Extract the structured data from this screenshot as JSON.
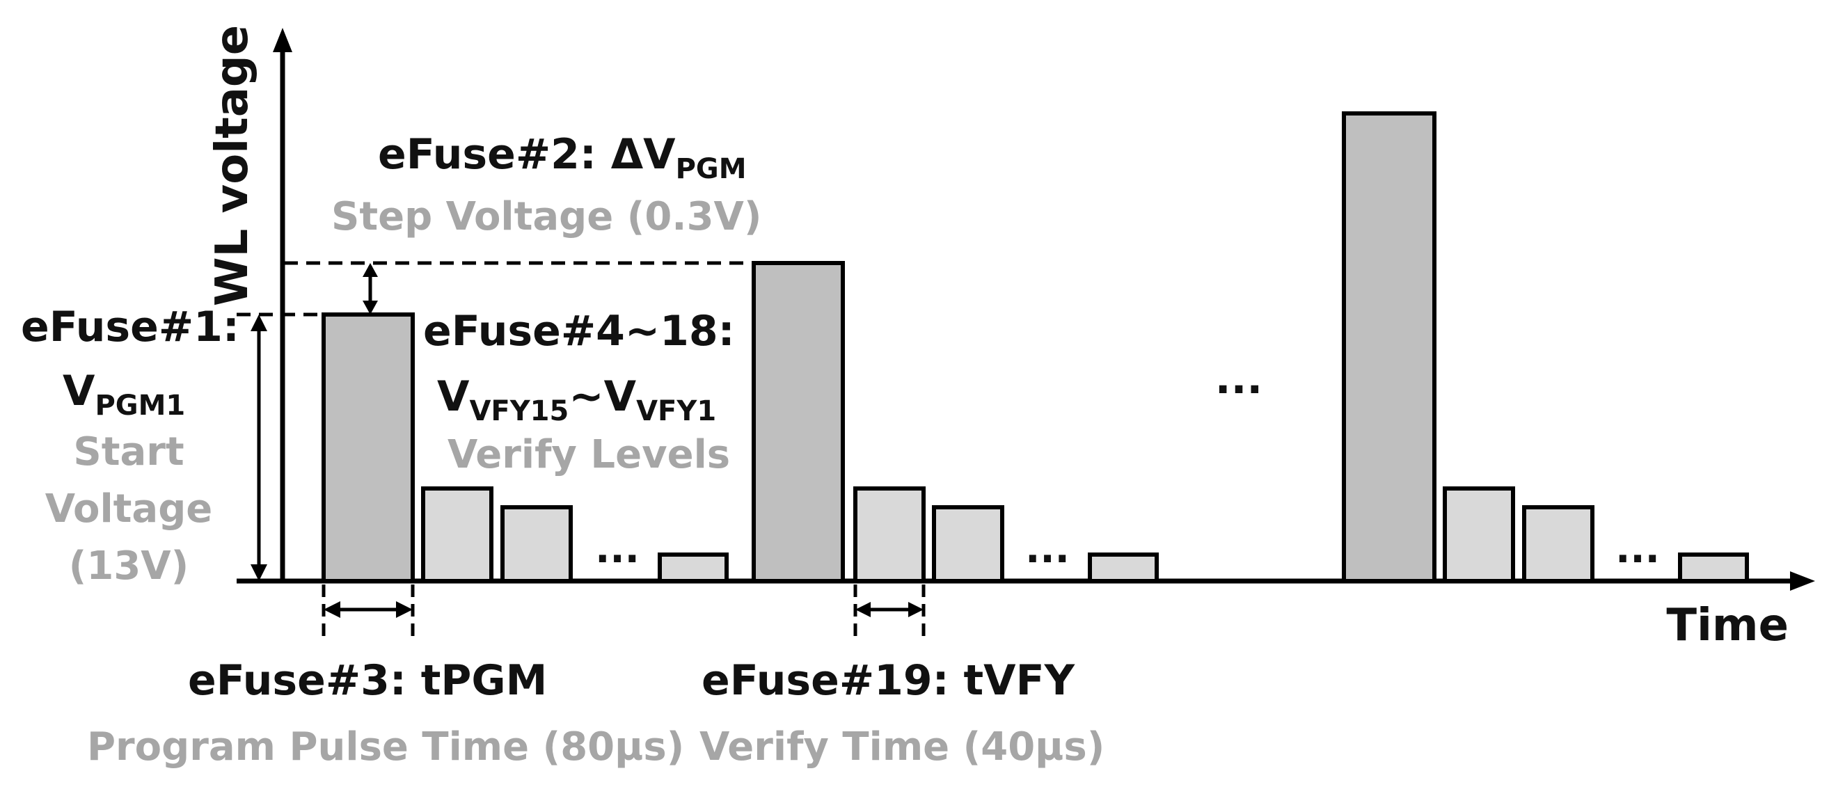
{
  "axes": {
    "y_label": "WL voltage",
    "x_label": "Time"
  },
  "ellipsis": "...",
  "annotations": {
    "efuse1": {
      "title": "eFuse#1:",
      "symbol": "V",
      "symbol_sub": "PGM1",
      "desc_lines": [
        "Start",
        "Voltage",
        "(13V)"
      ]
    },
    "efuse2": {
      "title": "eFuse#2: ΔV",
      "title_sub": "PGM",
      "desc": "Step Voltage (0.3V)"
    },
    "efuse4_18": {
      "title": "eFuse#4~18:",
      "v1": "V",
      "v1_sub": "VFY15",
      "tilde": "~V",
      "v2_sub": "VFY1",
      "desc": "Verify Levels"
    },
    "efuse3": {
      "title": "eFuse#3: tPGM",
      "desc": "Program Pulse Time (80µs)"
    },
    "efuse19": {
      "title": "eFuse#19: tVFY",
      "desc": "Verify Time (40µs)"
    }
  },
  "colors": {
    "program_pulse": "#bfbfbf",
    "verify_pulse": "#d9d9d9",
    "outline": "#000000",
    "description_text": "#a6a6a6",
    "title_text": "#111111"
  },
  "pulse_groups": [
    {
      "name": "pulse-group-1",
      "program_level": 1,
      "verify_levels": 3
    },
    {
      "name": "pulse-group-2",
      "program_level": 2,
      "verify_levels": 3
    },
    {
      "name": "pulse-group-n",
      "program_level": "n",
      "verify_levels": 3
    }
  ]
}
